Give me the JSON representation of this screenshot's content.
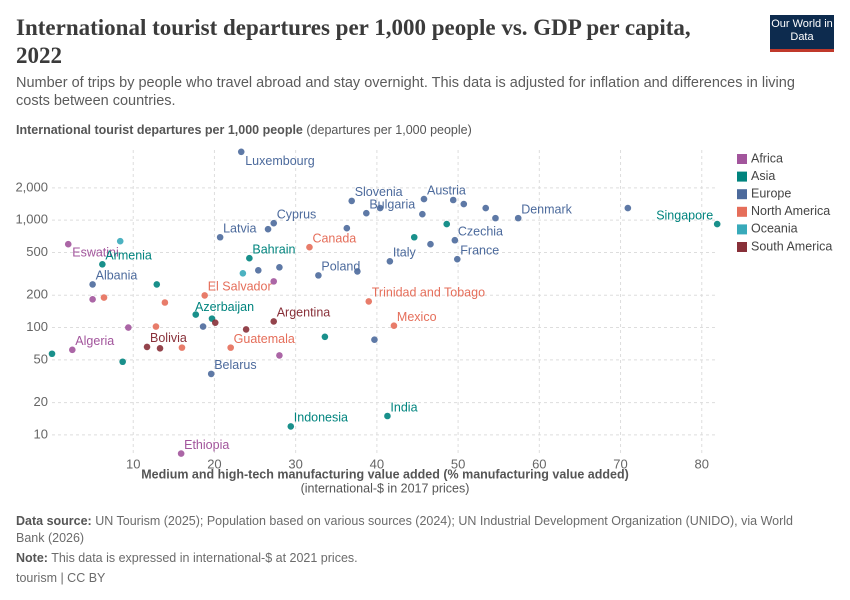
{
  "header": {
    "logo": "Our World in Data"
  },
  "chart_data": {
    "type": "scatter",
    "title": "International tourist departures per 1,000 people vs. GDP per capita, 2022",
    "subtitle": "Number of trips by people who travel abroad and stay overnight. This data is adjusted for inflation and differences in living costs between countries.",
    "y_axis_label": "International tourist departures per 1,000 people",
    "y_axis_unit": "(departures per 1,000 people)",
    "x_axis_label": "Medium and high-tech manufacturing value added (% manufacturing value added)",
    "x_axis_sublabel": "(international-$ in 2017 prices)",
    "xlim": [
      0,
      82
    ],
    "ylim": [
      6.5,
      4500
    ],
    "log_y": true,
    "grid": true,
    "legend": "right",
    "xticks": [
      10,
      20,
      30,
      40,
      50,
      60,
      70,
      80
    ],
    "yticks": [
      10,
      20,
      50,
      100,
      200,
      500,
      {
        "value": 1000,
        "label": "1,000"
      },
      {
        "value": 2000,
        "label": "2,000"
      }
    ],
    "series": [
      {
        "name": "Africa",
        "color": "#a2559c",
        "x": [
          2.0,
          2.5,
          15.9,
          5.0,
          9.4,
          28.0,
          27.3
        ],
        "values": [
          597,
          62,
          6.7,
          183,
          100,
          55,
          269
        ],
        "labels": [
          "Eswatini",
          "Algeria",
          "Ethiopia",
          null,
          null,
          null,
          null
        ]
      },
      {
        "name": "Asia",
        "color": "#00847e",
        "x": [
          6.2,
          19.7,
          24.3,
          29.4,
          41.3,
          81.9,
          0,
          8.7,
          12.9,
          17.7,
          33.6,
          44.6,
          48.6
        ],
        "values": [
          388,
          121,
          442,
          12,
          15,
          919,
          57,
          48,
          252,
          132,
          82,
          693,
          919
        ],
        "labels": [
          "Armenia",
          "Azerbaijan",
          "Bahrain",
          "Indonesia",
          "India",
          "Singapore",
          null,
          null,
          null,
          null,
          null,
          null,
          null
        ]
      },
      {
        "name": "Europe",
        "color": "#4c6a9c",
        "x": [
          23.3,
          5.0,
          19.6,
          20.7,
          27.3,
          32.8,
          38.7,
          36.9,
          41.6,
          45.8,
          49.6,
          49.9,
          57.4,
          18.6,
          25.4,
          26.6,
          28.0,
          37.6,
          36.3,
          40.4,
          39.7,
          45.6,
          46.6,
          50.7,
          53.4,
          54.6,
          70.9,
          49.4
        ],
        "values": [
          4330,
          252,
          37,
          693,
          937,
          306,
          1160,
          1510,
          414,
          1571,
          650,
          433,
          1044,
          102,
          341,
          824,
          364,
          333,
          841,
          1295,
          77,
          1137,
          597,
          1413,
          1295,
          1044,
          1295,
          1540
        ],
        "labels": [
          "Luxembourg",
          "Albania",
          "Belarus",
          "Latvia",
          "Cyprus",
          "Poland",
          "Bulgaria",
          "Slovenia",
          "Italy",
          "Austria",
          "Czechia",
          "France",
          "Denmark",
          null,
          null,
          null,
          null,
          null,
          null,
          null,
          null,
          null,
          null,
          null,
          null,
          null,
          null,
          null
        ]
      },
      {
        "name": "North America",
        "color": "#e56e5a",
        "x": [
          18.8,
          22.0,
          31.7,
          39.0,
          42.1,
          6.4,
          13.9,
          12.8,
          16.0
        ],
        "values": [
          199,
          65,
          560,
          175,
          104,
          190,
          171,
          102,
          65
        ],
        "labels": [
          "El Salvador",
          "Guatemala",
          "Canada",
          "Trinidad and Tobago",
          "Mexico",
          null,
          null,
          null,
          null
        ]
      },
      {
        "name": "Oceania",
        "color": "#38aaba",
        "x": [
          8.4,
          23.5
        ],
        "values": [
          637,
          320
        ],
        "labels": [
          null,
          null
        ]
      },
      {
        "name": "South America",
        "color": "#883039",
        "x": [
          11.7,
          27.3,
          13.3,
          20.1,
          23.9
        ],
        "values": [
          66,
          114,
          64,
          111,
          96
        ],
        "labels": [
          "Bolivia",
          "Argentina",
          null,
          null,
          null
        ]
      }
    ],
    "footer": {
      "source_label": "Data source:",
      "source": "UN Tourism (2025); Population based on various sources (2024); UN Industrial Development Organization (UNIDO), via World Bank (2026)",
      "note_label": "Note:",
      "note": "This data is expressed in international-$ at 2021 prices.",
      "license": "tourism | CC BY"
    }
  }
}
